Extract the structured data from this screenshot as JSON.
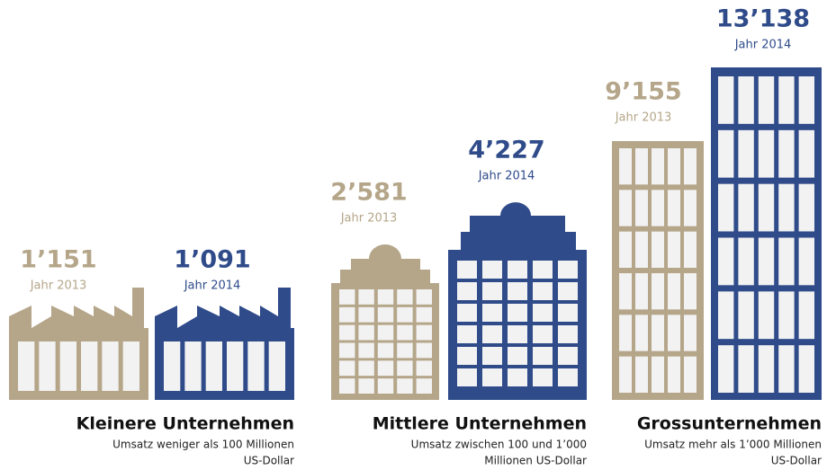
{
  "groups": [
    {
      "title": "Kleinere Unternehmen",
      "subtitle": [
        "Umsatz weniger als 100 Millionen",
        "US-Dollar"
      ],
      "items": [
        {
          "value": "1’151",
          "year": "Jahr 2013"
        },
        {
          "value": "1’091",
          "year": "Jahr 2014"
        }
      ]
    },
    {
      "title": "Mittlere Unternehmen",
      "subtitle": [
        "Umsatz zwischen 100 und 1’000",
        "Millionen US-Dollar"
      ],
      "items": [
        {
          "value": "2’581",
          "year": "Jahr 2013"
        },
        {
          "value": "4’227",
          "year": "Jahr 2014"
        }
      ]
    },
    {
      "title": "Grossunternehmen",
      "subtitle": [
        "Umsatz mehr als 1’000 Millionen",
        "US-Dollar"
      ],
      "items": [
        {
          "value": "9’155",
          "year": "Jahr 2013"
        },
        {
          "value": "13’138",
          "year": "Jahr 2014"
        }
      ]
    }
  ]
}
